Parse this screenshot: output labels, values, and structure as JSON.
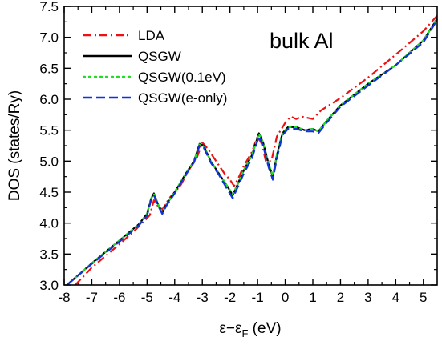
{
  "chart_data": {
    "type": "line",
    "annotation": "bulk Al",
    "xlabel_main": "ε−ε",
    "xlabel_sub": "F",
    "xlabel_unit": " (eV)",
    "ylabel": "DOS (states/Ry)",
    "xlim": [
      -8,
      5.5
    ],
    "ylim": [
      3.0,
      7.5
    ],
    "x_ticks": [
      -8,
      -7,
      -6,
      -5,
      -4,
      -3,
      -2,
      -1,
      0,
      1,
      2,
      3,
      4,
      5
    ],
    "x_tick_labels": [
      "-8",
      "-7",
      "-6",
      "-5",
      "-4",
      "-3",
      "-2",
      "-1",
      "0",
      "1",
      "2",
      "3",
      "4",
      "5"
    ],
    "y_ticks": [
      3.0,
      3.5,
      4.0,
      4.5,
      5.0,
      5.5,
      6.0,
      6.5,
      7.0,
      7.5
    ],
    "y_tick_labels": [
      "3.0",
      "3.5",
      "4.0",
      "4.5",
      "5.0",
      "5.5",
      "6.0",
      "6.5",
      "7.0",
      "7.5"
    ],
    "legend_position": "top-left",
    "series": [
      {
        "name": "LDA",
        "color": "#ee1111",
        "style": "dashdot",
        "points": [
          [
            -7.6,
            3.0
          ],
          [
            -7.0,
            3.28
          ],
          [
            -6.0,
            3.66
          ],
          [
            -5.4,
            3.9
          ],
          [
            -5.0,
            4.08
          ],
          [
            -4.9,
            4.13
          ],
          [
            -4.75,
            4.37
          ],
          [
            -4.6,
            4.27
          ],
          [
            -4.45,
            4.22
          ],
          [
            -4.2,
            4.4
          ],
          [
            -3.8,
            4.6
          ],
          [
            -3.5,
            4.85
          ],
          [
            -3.2,
            5.05
          ],
          [
            -3.0,
            5.3
          ],
          [
            -2.8,
            5.2
          ],
          [
            -2.5,
            5.0
          ],
          [
            -2.2,
            4.8
          ],
          [
            -2.0,
            4.7
          ],
          [
            -1.85,
            4.6
          ],
          [
            -1.7,
            4.72
          ],
          [
            -1.5,
            4.92
          ],
          [
            -1.2,
            5.15
          ],
          [
            -1.0,
            5.4
          ],
          [
            -0.85,
            5.28
          ],
          [
            -0.7,
            5.0
          ],
          [
            -0.5,
            5.0
          ],
          [
            -0.3,
            5.4
          ],
          [
            0.0,
            5.62
          ],
          [
            0.2,
            5.72
          ],
          [
            0.4,
            5.68
          ],
          [
            0.6,
            5.72
          ],
          [
            0.8,
            5.7
          ],
          [
            1.0,
            5.68
          ],
          [
            1.3,
            5.82
          ],
          [
            2.0,
            6.02
          ],
          [
            3.0,
            6.35
          ],
          [
            4.0,
            6.72
          ],
          [
            5.0,
            7.1
          ],
          [
            5.5,
            7.35
          ]
        ]
      },
      {
        "name": "QSGW",
        "color": "#000000",
        "style": "solid",
        "points": [
          [
            -7.9,
            3.0
          ],
          [
            -7.0,
            3.35
          ],
          [
            -6.0,
            3.72
          ],
          [
            -5.3,
            3.98
          ],
          [
            -5.0,
            4.15
          ],
          [
            -4.85,
            4.4
          ],
          [
            -4.75,
            4.48
          ],
          [
            -4.6,
            4.3
          ],
          [
            -4.45,
            4.17
          ],
          [
            -4.3,
            4.3
          ],
          [
            -4.0,
            4.5
          ],
          [
            -3.6,
            4.8
          ],
          [
            -3.3,
            5.0
          ],
          [
            -3.1,
            5.28
          ],
          [
            -2.95,
            5.25
          ],
          [
            -2.7,
            5.0
          ],
          [
            -2.4,
            4.8
          ],
          [
            -2.1,
            4.6
          ],
          [
            -1.9,
            4.45
          ],
          [
            -1.75,
            4.6
          ],
          [
            -1.5,
            4.85
          ],
          [
            -1.2,
            5.1
          ],
          [
            -0.95,
            5.45
          ],
          [
            -0.8,
            5.3
          ],
          [
            -0.6,
            4.95
          ],
          [
            -0.45,
            4.75
          ],
          [
            -0.3,
            5.1
          ],
          [
            -0.1,
            5.45
          ],
          [
            0.1,
            5.55
          ],
          [
            0.4,
            5.55
          ],
          [
            0.7,
            5.5
          ],
          [
            1.0,
            5.52
          ],
          [
            1.2,
            5.48
          ],
          [
            1.5,
            5.65
          ],
          [
            2.0,
            5.9
          ],
          [
            3.0,
            6.25
          ],
          [
            4.0,
            6.55
          ],
          [
            5.0,
            6.95
          ],
          [
            5.5,
            7.3
          ]
        ]
      },
      {
        "name": "QSGW(0.1eV)",
        "color": "#22dd22",
        "style": "dotted",
        "points": [
          [
            -7.9,
            3.0
          ],
          [
            -7.0,
            3.35
          ],
          [
            -6.0,
            3.72
          ],
          [
            -5.3,
            3.98
          ],
          [
            -5.0,
            4.15
          ],
          [
            -4.85,
            4.4
          ],
          [
            -4.75,
            4.47
          ],
          [
            -4.6,
            4.3
          ],
          [
            -4.45,
            4.18
          ],
          [
            -4.3,
            4.3
          ],
          [
            -4.0,
            4.5
          ],
          [
            -3.6,
            4.8
          ],
          [
            -3.3,
            5.0
          ],
          [
            -3.1,
            5.27
          ],
          [
            -2.95,
            5.24
          ],
          [
            -2.7,
            5.0
          ],
          [
            -2.4,
            4.8
          ],
          [
            -2.1,
            4.6
          ],
          [
            -1.9,
            4.47
          ],
          [
            -1.75,
            4.6
          ],
          [
            -1.5,
            4.85
          ],
          [
            -1.2,
            5.1
          ],
          [
            -0.95,
            5.44
          ],
          [
            -0.8,
            5.3
          ],
          [
            -0.6,
            4.95
          ],
          [
            -0.45,
            4.77
          ],
          [
            -0.3,
            5.1
          ],
          [
            -0.1,
            5.45
          ],
          [
            0.1,
            5.55
          ],
          [
            0.4,
            5.55
          ],
          [
            0.7,
            5.5
          ],
          [
            1.0,
            5.52
          ],
          [
            1.2,
            5.48
          ],
          [
            1.5,
            5.65
          ],
          [
            2.0,
            5.9
          ],
          [
            3.0,
            6.25
          ],
          [
            4.0,
            6.55
          ],
          [
            5.0,
            6.95
          ],
          [
            5.5,
            7.3
          ]
        ]
      },
      {
        "name": "QSGW(e-only)",
        "color": "#1133dd",
        "style": "dashed",
        "points": [
          [
            -7.9,
            3.0
          ],
          [
            -7.0,
            3.34
          ],
          [
            -6.0,
            3.7
          ],
          [
            -5.3,
            3.96
          ],
          [
            -5.0,
            4.12
          ],
          [
            -4.85,
            4.38
          ],
          [
            -4.75,
            4.45
          ],
          [
            -4.6,
            4.28
          ],
          [
            -4.45,
            4.15
          ],
          [
            -4.3,
            4.28
          ],
          [
            -4.0,
            4.48
          ],
          [
            -3.6,
            4.78
          ],
          [
            -3.3,
            4.98
          ],
          [
            -3.1,
            5.25
          ],
          [
            -2.95,
            5.22
          ],
          [
            -2.7,
            4.98
          ],
          [
            -2.4,
            4.78
          ],
          [
            -2.1,
            4.55
          ],
          [
            -1.9,
            4.4
          ],
          [
            -1.75,
            4.55
          ],
          [
            -1.5,
            4.8
          ],
          [
            -1.2,
            5.05
          ],
          [
            -0.95,
            5.4
          ],
          [
            -0.8,
            5.25
          ],
          [
            -0.6,
            4.9
          ],
          [
            -0.45,
            4.7
          ],
          [
            -0.3,
            5.05
          ],
          [
            -0.1,
            5.42
          ],
          [
            0.1,
            5.52
          ],
          [
            0.4,
            5.52
          ],
          [
            0.7,
            5.48
          ],
          [
            1.0,
            5.48
          ],
          [
            1.2,
            5.45
          ],
          [
            1.5,
            5.62
          ],
          [
            2.0,
            5.88
          ],
          [
            3.0,
            6.22
          ],
          [
            4.0,
            6.55
          ],
          [
            5.0,
            6.92
          ],
          [
            5.5,
            7.28
          ]
        ]
      }
    ]
  }
}
